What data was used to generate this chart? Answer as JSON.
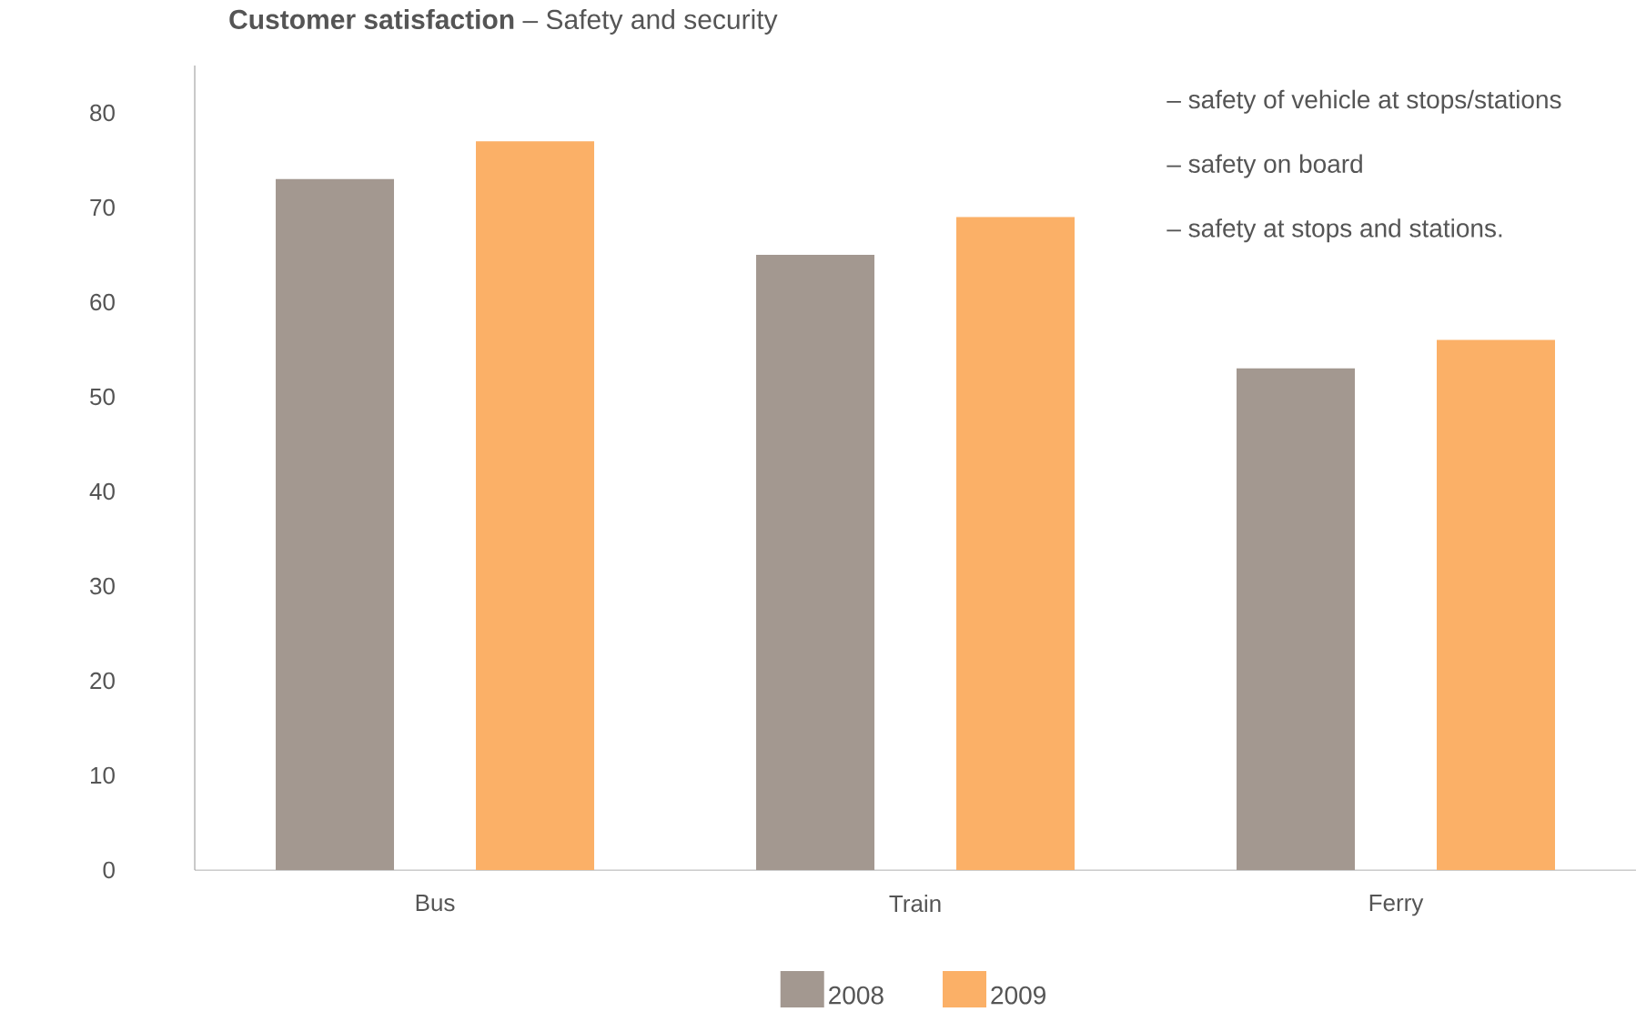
{
  "chart_data": {
    "type": "bar",
    "title": "**Customer satisfaction** – Safety and security",
    "categories": [
      "Bus",
      "Train",
      "Ferry"
    ],
    "series": [
      {
        "name": "2008",
        "color": "#a39890",
        "values": [
          73,
          65,
          53
        ]
      },
      {
        "name": "2009",
        "color": "#fbb067",
        "values": [
          77,
          69,
          56
        ]
      }
    ],
    "ylim": [
      0,
      85
    ],
    "yticks": [
      0,
      10,
      20,
      30,
      40,
      50,
      60,
      70,
      80
    ],
    "annotations": [
      "– safety of vehicle at stops/stations",
      "– safety on board",
      "– safety at stops and stations."
    ],
    "legend": "bottom",
    "grid": false
  }
}
